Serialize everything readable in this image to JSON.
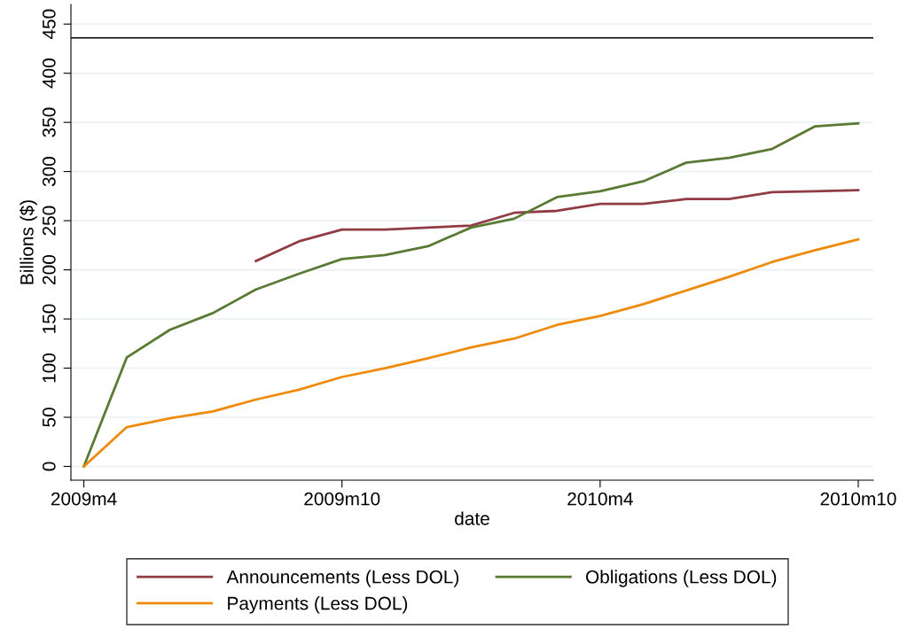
{
  "chart_data": {
    "type": "line",
    "xlabel": "date",
    "ylabel": "Billions ($)",
    "categories": [
      "2009m4",
      null,
      null,
      null,
      null,
      null,
      "2009m10",
      null,
      null,
      null,
      null,
      null,
      "2010m4",
      null,
      null,
      null,
      null,
      null,
      "2010m10"
    ],
    "ylim": [
      -14,
      470
    ],
    "yticks": [
      0,
      50,
      100,
      150,
      200,
      250,
      300,
      350,
      400,
      450
    ],
    "grid": "y",
    "legend": "bottom",
    "line_style": "solid",
    "marker": "none",
    "series": [
      {
        "name": "Announcements (Less DOL)",
        "color": "#903c45",
        "values": [
          null,
          null,
          null,
          null,
          209,
          229,
          241,
          241,
          243,
          245,
          258,
          260,
          267,
          267,
          272,
          272,
          279,
          280,
          281
        ]
      },
      {
        "name": "Obligations (Less DOL)",
        "color": "#5a7a34",
        "values": [
          0,
          111,
          139,
          156,
          180,
          196,
          211,
          215,
          224,
          243,
          252,
          274,
          280,
          290,
          309,
          314,
          323,
          346,
          349
        ]
      },
      {
        "name": "Payments (Less DOL)",
        "color": "#ee8b0c",
        "values": [
          0,
          40,
          49,
          56,
          68,
          78,
          91,
          100,
          110,
          121,
          130,
          144,
          153,
          165,
          179,
          193,
          208,
          220,
          231
        ]
      }
    ],
    "ref_lines": [
      {
        "axis": "y",
        "value": 436,
        "color": "#000000",
        "line_style": "solid"
      }
    ]
  }
}
